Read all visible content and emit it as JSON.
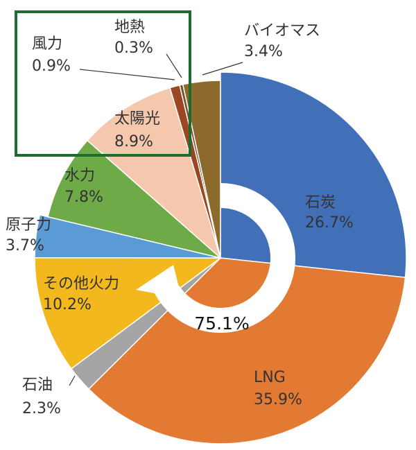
{
  "chart_data": {
    "type": "pie",
    "categories": [
      "石炭",
      "LNG",
      "石油",
      "その他火力",
      "原子力",
      "水力",
      "太陽光",
      "風力",
      "地熱",
      "バイオマス"
    ],
    "values": [
      26.7,
      35.9,
      2.3,
      10.2,
      3.7,
      7.8,
      8.9,
      0.9,
      0.3,
      3.4
    ],
    "value_labels": [
      "26.7%",
      "35.9%",
      "2.3%",
      "10.2%",
      "3.7%",
      "7.8%",
      "8.9%",
      "0.9%",
      "0.3%",
      "3.4%"
    ],
    "colors": [
      "#4270b8",
      "#e37a34",
      "#a5a5a5",
      "#f3b81d",
      "#5b9bd5",
      "#6eaa48",
      "#f5c8ad",
      "#9b4721",
      "#7a5230",
      "#8c6a2b"
    ],
    "annotation": "75.1%"
  }
}
